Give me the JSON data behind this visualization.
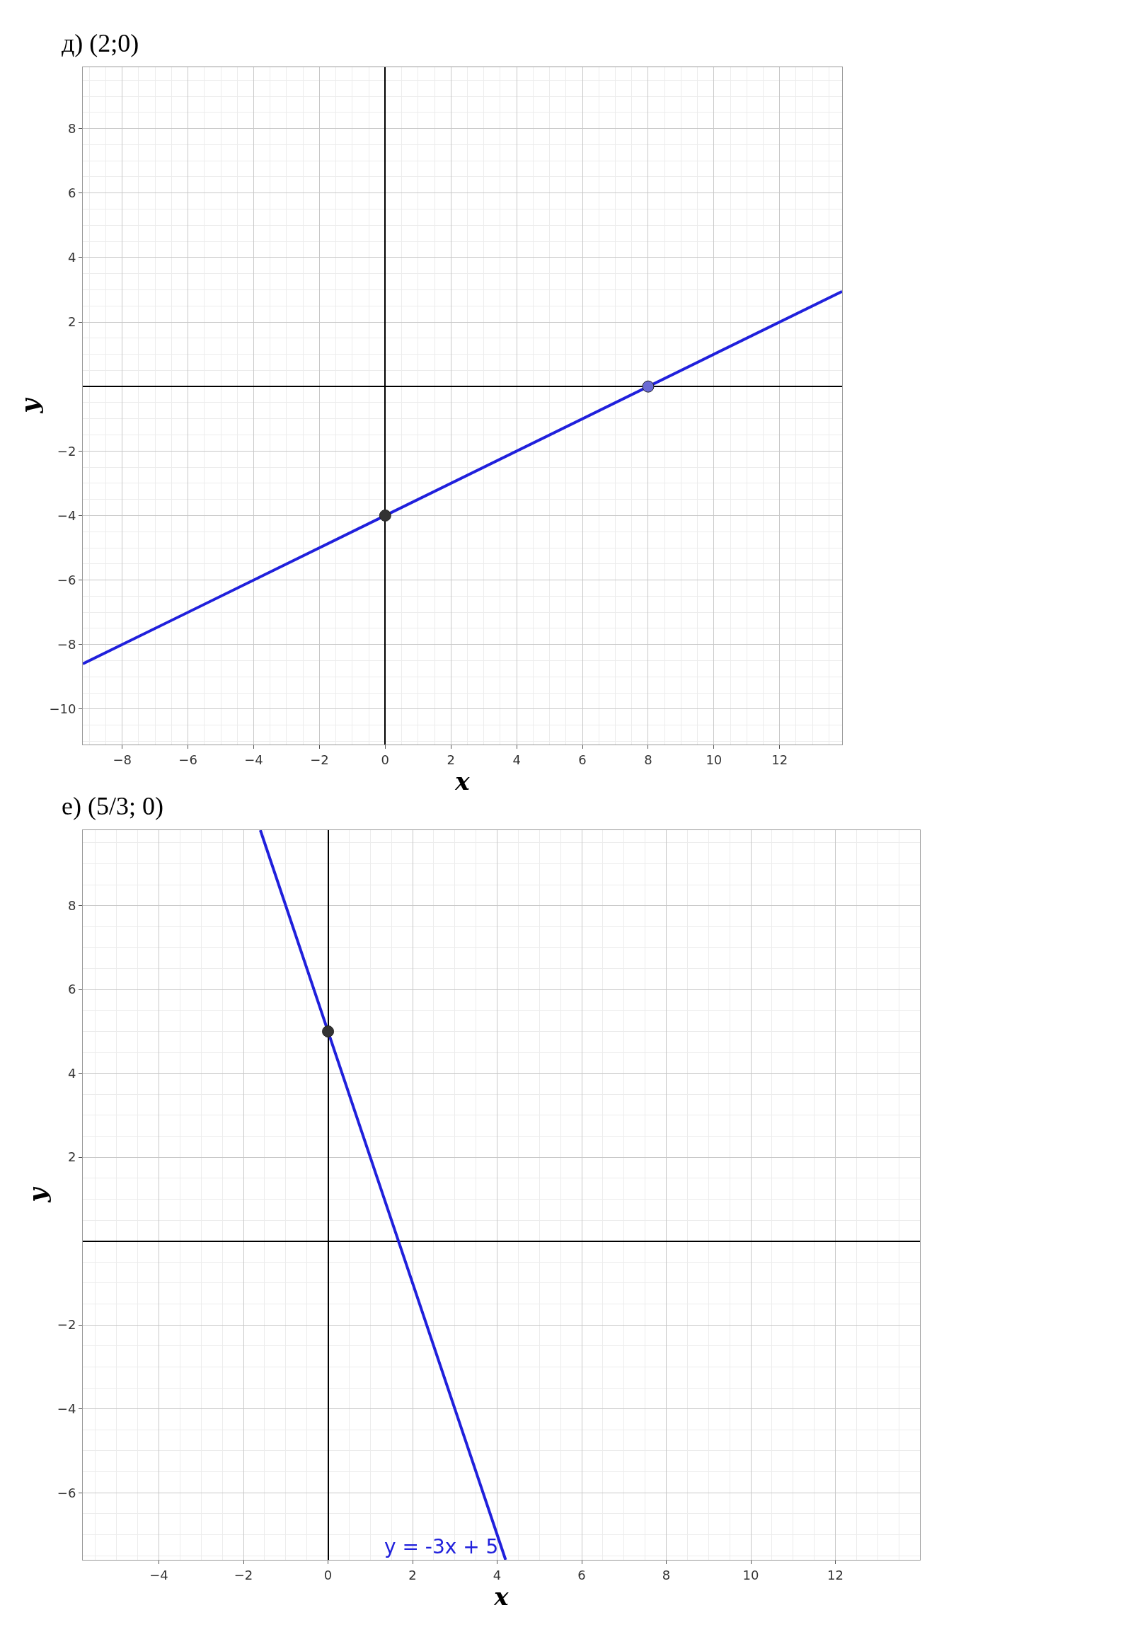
{
  "chart_data": [
    {
      "type": "line",
      "title": "д) (2;0)",
      "xlabel": "x",
      "ylabel": "y",
      "xlim": [
        -9.2,
        13.9
      ],
      "ylim": [
        -11.1,
        9.9
      ],
      "xticks": [
        -8,
        -6,
        -4,
        -2,
        0,
        2,
        4,
        6,
        8,
        10,
        12
      ],
      "yticks": [
        -10,
        -8,
        -6,
        -4,
        -2,
        2,
        4,
        6,
        8
      ],
      "grid": true,
      "series": [
        {
          "color": "#2020dc",
          "x": [
            -9.2,
            13.9
          ],
          "values": [
            -8.6,
            2.95
          ]
        },
        {
          "type": "scatter",
          "color": "#333333",
          "x": [
            0
          ],
          "values": [
            -4
          ],
          "marker": "circle"
        },
        {
          "type": "scatter",
          "color": "#6a6ad4",
          "x": [
            8
          ],
          "values": [
            0
          ],
          "marker": "circle"
        }
      ]
    },
    {
      "type": "line",
      "title": "е) (5/3; 0)",
      "xlabel": "x",
      "ylabel": "y",
      "xlim": [
        -5.8,
        14.0
      ],
      "ylim": [
        -7.6,
        9.8
      ],
      "xticks": [
        -4,
        -2,
        0,
        2,
        4,
        6,
        8,
        10,
        12
      ],
      "yticks": [
        -6,
        -4,
        -2,
        2,
        4,
        6,
        8
      ],
      "grid": true,
      "series": [
        {
          "name": "y = -3x + 5",
          "color": "#2020dc",
          "x": [
            -1.6,
            4.2
          ],
          "values": [
            9.8,
            -7.6
          ]
        },
        {
          "type": "scatter",
          "color": "#333333",
          "x": [
            0
          ],
          "values": [
            5
          ],
          "marker": "circle"
        }
      ]
    }
  ]
}
